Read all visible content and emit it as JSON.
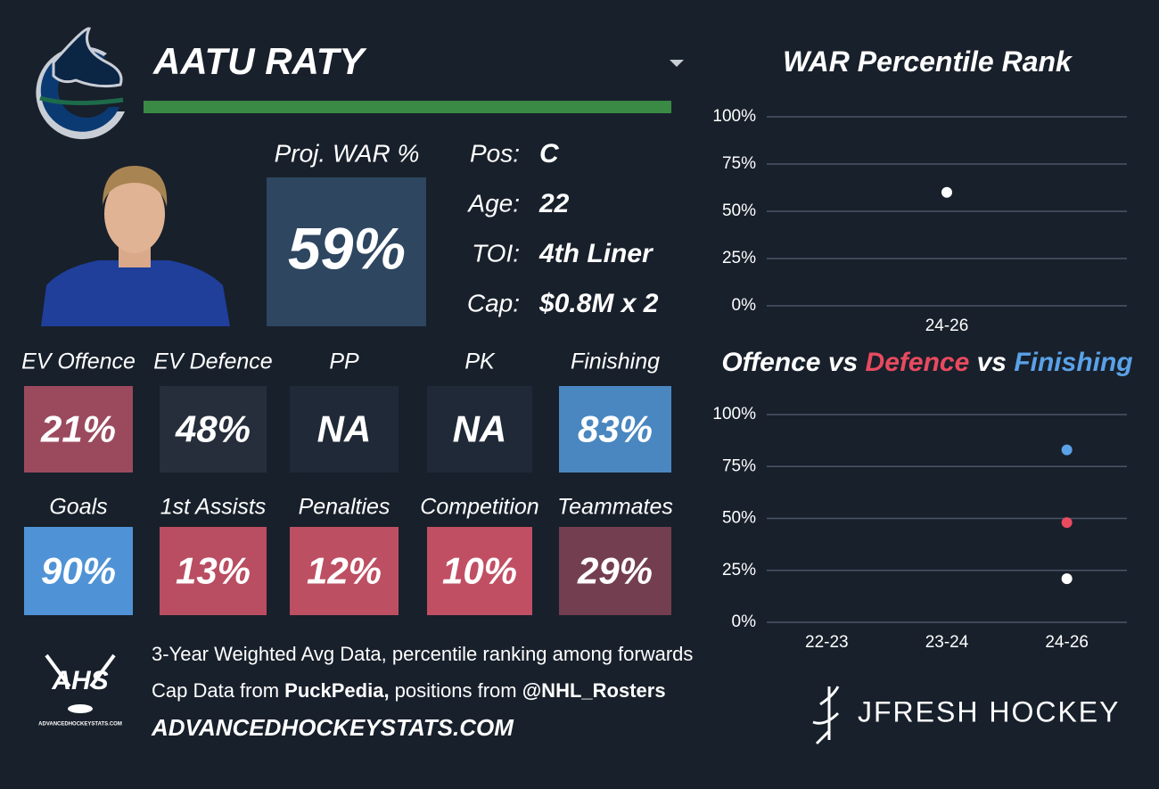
{
  "player": {
    "name": "AATU RATY"
  },
  "proj_war": {
    "label": "Proj. WAR %",
    "value": "59%"
  },
  "bio": [
    {
      "label": "Pos:",
      "value": "C"
    },
    {
      "label": "Age:",
      "value": "22"
    },
    {
      "label": "TOI:",
      "value": "4th Liner"
    },
    {
      "label": "Cap:",
      "value": "$0.8M x 2"
    }
  ],
  "stats": [
    {
      "label": "EV Offence",
      "value": "21%",
      "color": "#9b4a5e"
    },
    {
      "label": "EV Defence",
      "value": "48%",
      "color": "#262d3b"
    },
    {
      "label": "PP",
      "value": "NA",
      "color": "#1f2937"
    },
    {
      "label": "PK",
      "value": "NA",
      "color": "#1f2937"
    },
    {
      "label": "Finishing",
      "value": "83%",
      "color": "#4a87c0"
    },
    {
      "label": "Goals",
      "value": "90%",
      "color": "#4f93d6"
    },
    {
      "label": "1st Assists",
      "value": "13%",
      "color": "#b94d61"
    },
    {
      "label": "Penalties",
      "value": "12%",
      "color": "#bd4f62"
    },
    {
      "label": "Competition",
      "value": "10%",
      "color": "#c14f63"
    },
    {
      "label": "Teammates",
      "value": "29%",
      "color": "#733e50"
    }
  ],
  "footer": {
    "line1": "3-Year Weighted Avg Data, percentile ranking among forwards",
    "line2": [
      {
        "text": "Cap Data from ",
        "bold": false
      },
      {
        "text": "PuckPedia,",
        "bold": true
      },
      {
        "text": " positions from ",
        "bold": false
      },
      {
        "text": "@NHL_Rosters",
        "bold": true
      }
    ],
    "line3": "ADVANCEDHOCKEYSTATS.COM",
    "ahs_logo": "AHS",
    "ahs_url": "ADVANCEDHOCKEYSTATS.COM",
    "brand": "JFRESH HOCKEY"
  },
  "chart_data": [
    {
      "type": "scatter",
      "title": [
        {
          "text": "WAR Percentile Rank",
          "color": "#ffffff"
        }
      ],
      "categories": [
        "24-26"
      ],
      "series": [
        {
          "color": "#ffffff",
          "values": [
            60
          ]
        }
      ],
      "ylim": [
        0,
        100
      ],
      "yticks": [
        {
          "value": 0,
          "label": "0%"
        },
        {
          "value": 25,
          "label": "25%"
        },
        {
          "value": 50,
          "label": "50%"
        },
        {
          "value": 75,
          "label": "75%"
        },
        {
          "value": 100,
          "label": "100%"
        }
      ],
      "grid": true
    },
    {
      "type": "scatter",
      "title": [
        {
          "text": "Offence",
          "color": "#ffffff"
        },
        {
          "text": " vs ",
          "color": "#ffffff"
        },
        {
          "text": "Defence",
          "color": "#e84a5f"
        },
        {
          "text": " vs ",
          "color": "#ffffff"
        },
        {
          "text": "Finishing",
          "color": "#5aa2e8"
        }
      ],
      "categories": [
        "22-23",
        "23-24",
        "24-26"
      ],
      "series": [
        {
          "color": "#ffffff",
          "values": [
            null,
            null,
            21
          ]
        },
        {
          "color": "#e84a5f",
          "values": [
            null,
            null,
            48
          ]
        },
        {
          "color": "#5aa2e8",
          "values": [
            null,
            null,
            83
          ]
        }
      ],
      "ylim": [
        0,
        100
      ],
      "yticks": [
        {
          "value": 0,
          "label": "0%"
        },
        {
          "value": 25,
          "label": "25%"
        },
        {
          "value": 50,
          "label": "50%"
        },
        {
          "value": 75,
          "label": "75%"
        },
        {
          "value": 100,
          "label": "100%"
        }
      ],
      "grid": true
    }
  ]
}
